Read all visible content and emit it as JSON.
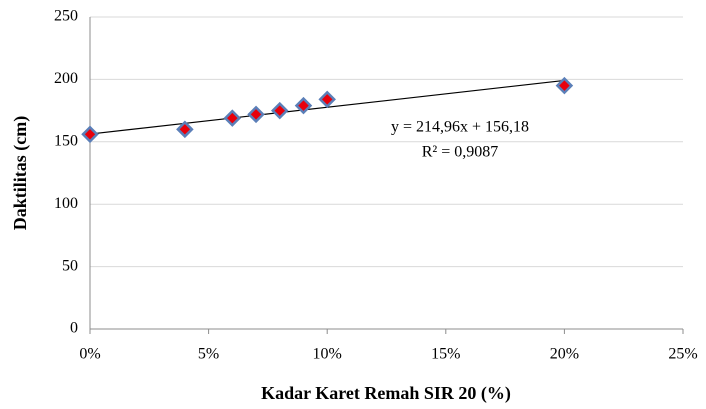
{
  "chart_data": {
    "type": "scatter",
    "x_label": "Kadar Karet Remah SIR 20 (%)",
    "y_label": "Daktilitas (cm)",
    "series": [
      {
        "x": [
          0,
          0.04,
          0.06,
          0.07,
          0.08,
          0.09,
          0.1,
          0.2
        ],
        "values": [
          156,
          160,
          169,
          172,
          175,
          179,
          184,
          195
        ],
        "color": "#e8000b",
        "edge_color": "#5b7fb8"
      }
    ],
    "trendline": {
      "slope": 214.96,
      "intercept": 156.18,
      "equation": "y = 214,96x + 156,18",
      "r2": "R² = 0,9087",
      "color": "#000000"
    },
    "xlim": [
      0,
      0.25
    ],
    "xticks": [
      {
        "value": 0,
        "label": "0%"
      },
      {
        "value": 0.05,
        "label": "5%"
      },
      {
        "value": 0.1,
        "label": "10%"
      },
      {
        "value": 0.15,
        "label": "15%"
      },
      {
        "value": 0.2,
        "label": "20%"
      },
      {
        "value": 0.25,
        "label": "25%"
      }
    ],
    "ylim": [
      0,
      250
    ],
    "yticks": [
      0,
      50,
      100,
      150,
      200,
      250
    ],
    "grid": true
  }
}
